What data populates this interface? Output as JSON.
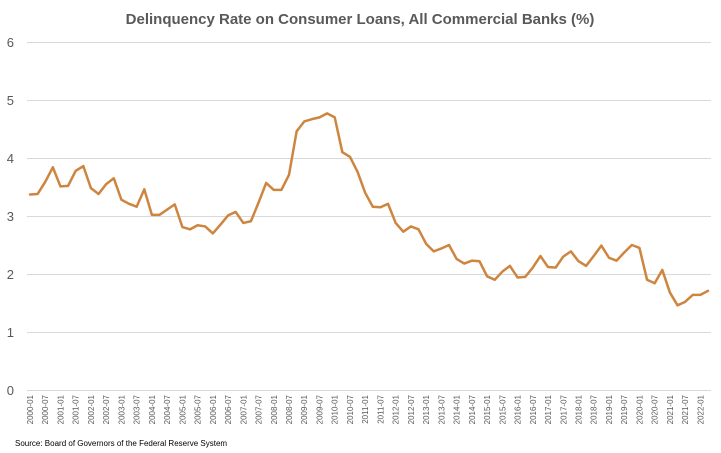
{
  "source": "Source:  Board of Governors of the Federal Reserve System",
  "colors": {
    "line": "#cd853f",
    "grid": "#d9d9d9",
    "text": "#595959"
  },
  "chart_data": {
    "type": "line",
    "title": "Delinquency Rate on Consumer Loans, All Commercial Banks (%)",
    "xlabel": "",
    "ylabel": "",
    "ylim": [
      0,
      6
    ],
    "yticks": [
      0,
      1,
      2,
      3,
      4,
      5,
      6
    ],
    "grid": true,
    "xtick_labels": [
      "2000-01",
      "2000-07",
      "2001-01",
      "2001-07",
      "2002-01",
      "2002-07",
      "2003-01",
      "2003-07",
      "2004-01",
      "2004-07",
      "2005-01",
      "2005-07",
      "2006-01",
      "2006-07",
      "2007-01",
      "2007-07",
      "2008-01",
      "2008-07",
      "2009-01",
      "2009-07",
      "2010-01",
      "2010-07",
      "2011-01",
      "2011-07",
      "2012-01",
      "2012-07",
      "2013-01",
      "2013-07",
      "2014-01",
      "2014-07",
      "2015-01",
      "2015-07",
      "2016-01",
      "2016-07",
      "2017-01",
      "2017-07",
      "2018-01",
      "2018-07",
      "2019-01",
      "2019-07",
      "2020-01",
      "2020-07",
      "2021-01",
      "2021-07",
      "2022-01"
    ],
    "series": [
      {
        "x": [
          "2000-01",
          "2000-04",
          "2000-07",
          "2000-10",
          "2001-01",
          "2001-04",
          "2001-07",
          "2001-10",
          "2002-01",
          "2002-04",
          "2002-07",
          "2002-10",
          "2003-01",
          "2003-04",
          "2003-07",
          "2003-10",
          "2004-01",
          "2004-04",
          "2004-07",
          "2004-10",
          "2005-01",
          "2005-04",
          "2005-07",
          "2005-10",
          "2006-01",
          "2006-04",
          "2006-07",
          "2006-10",
          "2007-01",
          "2007-04",
          "2007-07",
          "2007-10",
          "2008-01",
          "2008-04",
          "2008-07",
          "2008-10",
          "2009-01",
          "2009-04",
          "2009-07",
          "2009-10",
          "2010-01",
          "2010-04",
          "2010-07",
          "2010-10",
          "2011-01",
          "2011-04",
          "2011-07",
          "2011-10",
          "2012-01",
          "2012-04",
          "2012-07",
          "2012-10",
          "2013-01",
          "2013-04",
          "2013-07",
          "2013-10",
          "2014-01",
          "2014-04",
          "2014-07",
          "2014-10",
          "2015-01",
          "2015-04",
          "2015-07",
          "2015-10",
          "2016-01",
          "2016-04",
          "2016-07",
          "2016-10",
          "2017-01",
          "2017-04",
          "2017-07",
          "2017-10",
          "2018-01",
          "2018-04",
          "2018-07",
          "2018-10",
          "2019-01",
          "2019-04",
          "2019-07",
          "2019-10",
          "2020-01",
          "2020-04",
          "2020-07",
          "2020-10",
          "2021-01",
          "2021-04",
          "2021-07",
          "2021-10",
          "2022-01",
          "2022-04"
        ],
        "values": [
          3.37,
          3.38,
          3.59,
          3.84,
          3.51,
          3.52,
          3.78,
          3.86,
          3.48,
          3.38,
          3.55,
          3.65,
          3.28,
          3.21,
          3.16,
          3.46,
          3.02,
          3.02,
          3.11,
          3.2,
          2.81,
          2.77,
          2.84,
          2.82,
          2.7,
          2.85,
          3.01,
          3.07,
          2.88,
          2.91,
          3.23,
          3.57,
          3.45,
          3.45,
          3.71,
          4.46,
          4.63,
          4.67,
          4.7,
          4.77,
          4.7,
          4.1,
          4.02,
          3.76,
          3.4,
          3.16,
          3.15,
          3.21,
          2.88,
          2.73,
          2.82,
          2.77,
          2.52,
          2.39,
          2.44,
          2.5,
          2.26,
          2.18,
          2.23,
          2.22,
          1.96,
          1.9,
          2.04,
          2.14,
          1.94,
          1.95,
          2.11,
          2.31,
          2.12,
          2.11,
          2.3,
          2.39,
          2.22,
          2.14,
          2.31,
          2.49,
          2.28,
          2.23,
          2.37,
          2.5,
          2.45,
          1.9,
          1.84,
          2.07,
          1.68,
          1.46,
          1.52,
          1.64,
          1.64,
          1.71
        ]
      }
    ]
  }
}
